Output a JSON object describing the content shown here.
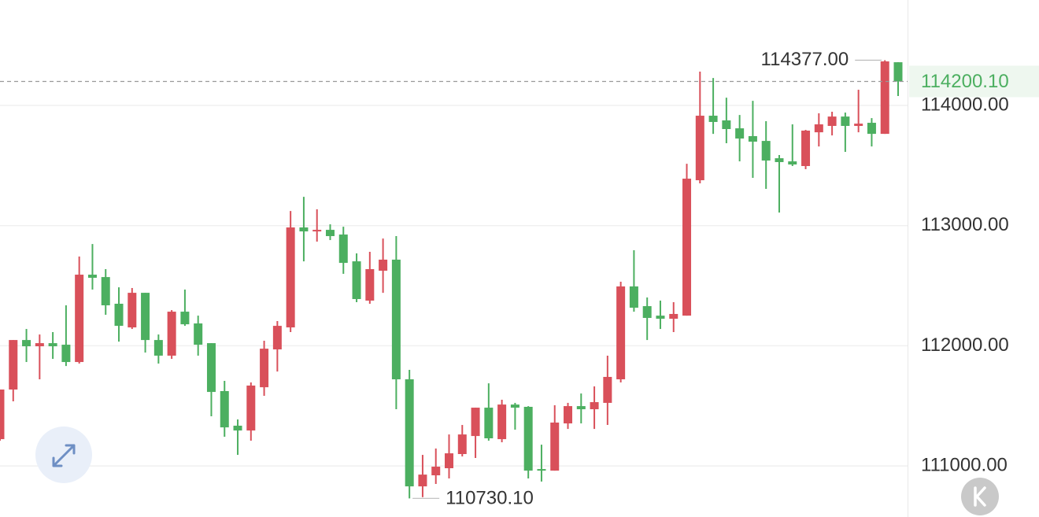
{
  "chart_data": {
    "type": "candlestick",
    "up_color": "#d9505a",
    "down_color": "#4caf60",
    "open": [
      111223,
      111636,
      112048,
      111996,
      112022,
      112009,
      111865,
      112592,
      112572,
      112350,
      112153,
      112441,
      112048,
      111918,
      112284,
      112186,
      112022,
      111623,
      111335,
      111295,
      111655,
      111970,
      112153,
      112985,
      112952,
      112965,
      112926,
      112703,
      112376,
      112625,
      112717,
      111721,
      110830,
      110922,
      110981,
      111099,
      111249,
      111485,
      111223,
      111511,
      111492,
      110974,
      110961,
      111354,
      111498,
      111472,
      111525,
      111721,
      112494,
      112330,
      112251,
      112225,
      112251,
      113378,
      113915,
      113876,
      113810,
      113745,
      113705,
      113561,
      113535,
      113496,
      113777,
      113830,
      113908,
      113830,
      113856,
      113764,
      114360
    ],
    "high": [
      111636,
      112048,
      112140,
      112094,
      112114,
      112337,
      112743,
      112847,
      112638,
      112487,
      112481,
      112441,
      112094,
      112297,
      112468,
      112251,
      112022,
      111708,
      111387,
      111695,
      112042,
      112206,
      113122,
      113240,
      113136,
      113011,
      112991,
      112769,
      112782,
      112893,
      112913,
      111800,
      111092,
      111145,
      111262,
      111341,
      111485,
      111688,
      111551,
      111525,
      111498,
      111177,
      111505,
      111525,
      111603,
      111662,
      111918,
      112533,
      112795,
      112402,
      112376,
      112363,
      113515,
      114282,
      114229,
      114065,
      113921,
      114039,
      113869,
      113588,
      113843,
      113797,
      113935,
      113948,
      113941,
      114131,
      113895,
      114377,
      114360
    ],
    "low": [
      111210,
      111538,
      111865,
      111721,
      111891,
      111832,
      111852,
      112468,
      112258,
      112035,
      112140,
      111944,
      111852,
      111891,
      112166,
      111918,
      111413,
      111243,
      111092,
      111210,
      111584,
      111786,
      112114,
      112703,
      112867,
      112880,
      112599,
      112363,
      112350,
      112441,
      111472,
      110730.1,
      110740,
      110850,
      110896,
      111079,
      111066,
      111210,
      111197,
      111302,
      110896,
      110870,
      110961,
      111308,
      111354,
      111308,
      111341,
      111695,
      112284,
      112048,
      112140,
      112114,
      112251,
      113352,
      113764,
      113686,
      113535,
      113398,
      113306,
      113109,
      113496,
      113470,
      113659,
      113751,
      113614,
      113777,
      113659,
      113764,
      114079
    ],
    "close": [
      111636,
      112048,
      111996,
      112022,
      111996,
      111865,
      112592,
      112566,
      112337,
      112166,
      112441,
      112048,
      111918,
      112284,
      112179,
      112009,
      111616,
      111321,
      111295,
      111669,
      111976,
      112166,
      112985,
      112952,
      112965,
      112913,
      112690,
      112389,
      112638,
      112717,
      111721,
      110830,
      110928,
      110994,
      111105,
      111262,
      111485,
      111230,
      111511,
      111485,
      110961,
      110961,
      111361,
      111498,
      111472,
      111531,
      111741,
      112494,
      112317,
      112232,
      112225,
      112265,
      113391,
      113915,
      113863,
      113804,
      113725,
      113699,
      113542,
      113529,
      113509,
      113791,
      113843,
      113908,
      113830,
      113849,
      113764,
      114367,
      114200.1
    ],
    "ylim": [
      110575,
      114878
    ],
    "yticks": [
      {
        "value": 111000,
        "label": "111000.00"
      },
      {
        "value": 112000,
        "label": "112000.00"
      },
      {
        "value": 113000,
        "label": "113000.00"
      },
      {
        "value": 114000,
        "label": "114000.00"
      }
    ],
    "grid": true,
    "high_marker": {
      "value": 114377,
      "label": "114377.00"
    },
    "low_marker": {
      "value": 110730.1,
      "label": "110730.10"
    },
    "last_price": {
      "value": 114200.1,
      "label": "114200.10"
    }
  }
}
